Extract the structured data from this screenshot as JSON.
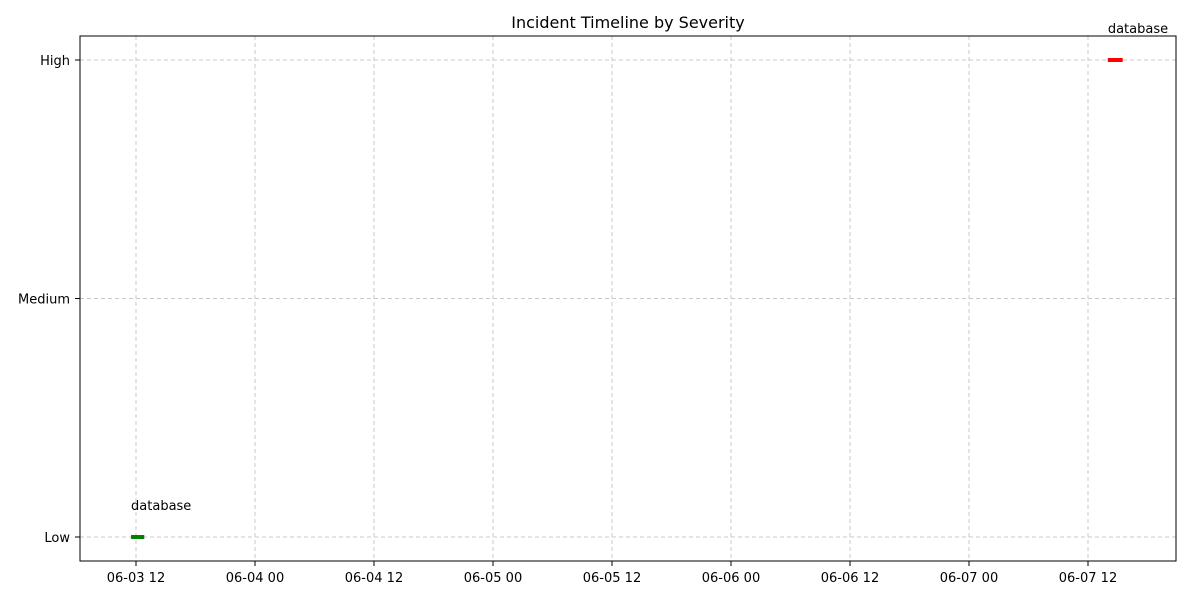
{
  "chart_data": {
    "type": "timeline",
    "title": "Incident Timeline by Severity",
    "xlabel": "",
    "ylabel": "",
    "y_categories": [
      "Low",
      "Medium",
      "High"
    ],
    "x_ticks": [
      "06-03 12",
      "06-04 00",
      "06-04 12",
      "06-05 00",
      "06-05 12",
      "06-06 00",
      "06-06 12",
      "06-07 00",
      "06-07 12"
    ],
    "grid": true,
    "incidents": [
      {
        "severity": "Low",
        "start": "06-03 11:30",
        "end": "06-03 12:50",
        "label": "database",
        "color": "#008000"
      },
      {
        "severity": "High",
        "start": "06-07 14:00",
        "end": "06-07 15:30",
        "label": "database",
        "color": "#ff0000"
      }
    ]
  }
}
